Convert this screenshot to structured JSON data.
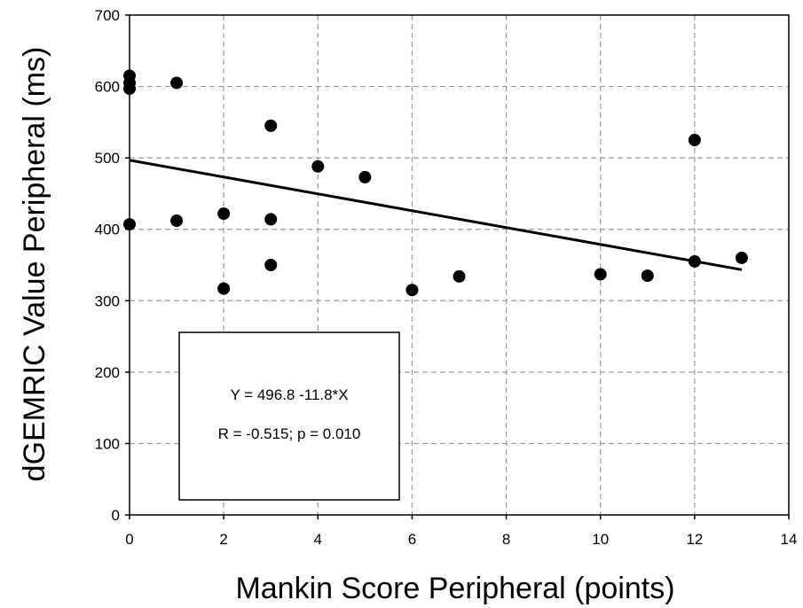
{
  "chart_data": {
    "type": "scatter",
    "xlabel": "Mankin Score Peripheral (points)",
    "ylabel": "dGEMRIC Value Peripheral (ms)",
    "xlim": [
      0,
      14
    ],
    "ylim": [
      0,
      700
    ],
    "xticks": [
      0,
      2,
      4,
      6,
      8,
      10,
      12,
      14
    ],
    "yticks": [
      0,
      100,
      200,
      300,
      400,
      500,
      600,
      700
    ],
    "grid": true,
    "grid_style": "dashed",
    "marker_color": "#000000",
    "series": [
      {
        "points": [
          {
            "x": 0,
            "y": 615
          },
          {
            "x": 0,
            "y": 605
          },
          {
            "x": 0,
            "y": 597
          },
          {
            "x": 0,
            "y": 407
          },
          {
            "x": 1,
            "y": 605
          },
          {
            "x": 1,
            "y": 412
          },
          {
            "x": 2,
            "y": 422
          },
          {
            "x": 2,
            "y": 317
          },
          {
            "x": 3,
            "y": 545
          },
          {
            "x": 3,
            "y": 414
          },
          {
            "x": 3,
            "y": 350
          },
          {
            "x": 4,
            "y": 488
          },
          {
            "x": 5,
            "y": 473
          },
          {
            "x": 6,
            "y": 315
          },
          {
            "x": 7,
            "y": 334
          },
          {
            "x": 10,
            "y": 337
          },
          {
            "x": 11,
            "y": 335
          },
          {
            "x": 12,
            "y": 525
          },
          {
            "x": 12,
            "y": 355
          },
          {
            "x": 13,
            "y": 360
          }
        ]
      }
    ],
    "regression": {
      "intercept": 496.8,
      "slope": -11.8,
      "x_range": [
        0,
        13
      ]
    },
    "annotation": {
      "equation": "Y = 496.8 -11.8*X",
      "stats": "R = -0.515; p = 0.010"
    }
  }
}
